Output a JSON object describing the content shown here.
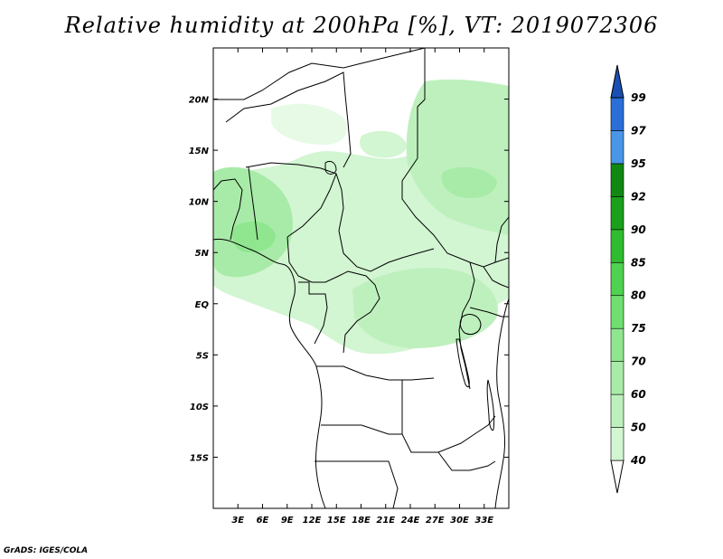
{
  "title": "Relative humidity at 200hPa [%], VT: 2019072306",
  "credit": "GrADS: IGES/COLA",
  "map": {
    "lon_range": [
      0,
      36
    ],
    "lat_range": [
      -20,
      25
    ],
    "lat_ticks": [
      {
        "value": 20,
        "label": "20N"
      },
      {
        "value": 15,
        "label": "15N"
      },
      {
        "value": 10,
        "label": "10N"
      },
      {
        "value": 5,
        "label": "5N"
      },
      {
        "value": 0,
        "label": "EQ"
      },
      {
        "value": -5,
        "label": "5S"
      },
      {
        "value": -10,
        "label": "10S"
      },
      {
        "value": -15,
        "label": "15S"
      }
    ],
    "lon_ticks": [
      {
        "value": 3,
        "label": "3E"
      },
      {
        "value": 6,
        "label": "6E"
      },
      {
        "value": 9,
        "label": "9E"
      },
      {
        "value": 12,
        "label": "12E"
      },
      {
        "value": 15,
        "label": "15E"
      },
      {
        "value": 18,
        "label": "18E"
      },
      {
        "value": 21,
        "label": "21E"
      },
      {
        "value": 24,
        "label": "24E"
      },
      {
        "value": 27,
        "label": "27E"
      },
      {
        "value": 30,
        "label": "30E"
      },
      {
        "value": 33,
        "label": "33E"
      }
    ]
  },
  "colorbar": {
    "levels": [
      {
        "label": "40",
        "color": "#e6fae6"
      },
      {
        "label": "50",
        "color": "#d2f5d2"
      },
      {
        "label": "60",
        "color": "#bef0be"
      },
      {
        "label": "70",
        "color": "#a8eba8"
      },
      {
        "label": "75",
        "color": "#8fe68f"
      },
      {
        "label": "80",
        "color": "#6fe06f"
      },
      {
        "label": "85",
        "color": "#4fd24f"
      },
      {
        "label": "90",
        "color": "#2fbc2f"
      },
      {
        "label": "92",
        "color": "#1aa01a"
      },
      {
        "label": "95",
        "color": "#118811"
      },
      {
        "label": "97",
        "color": "#4a96e6"
      },
      {
        "label": "99",
        "color": "#2a6fd8"
      }
    ],
    "top_color": "#1a50b4"
  }
}
